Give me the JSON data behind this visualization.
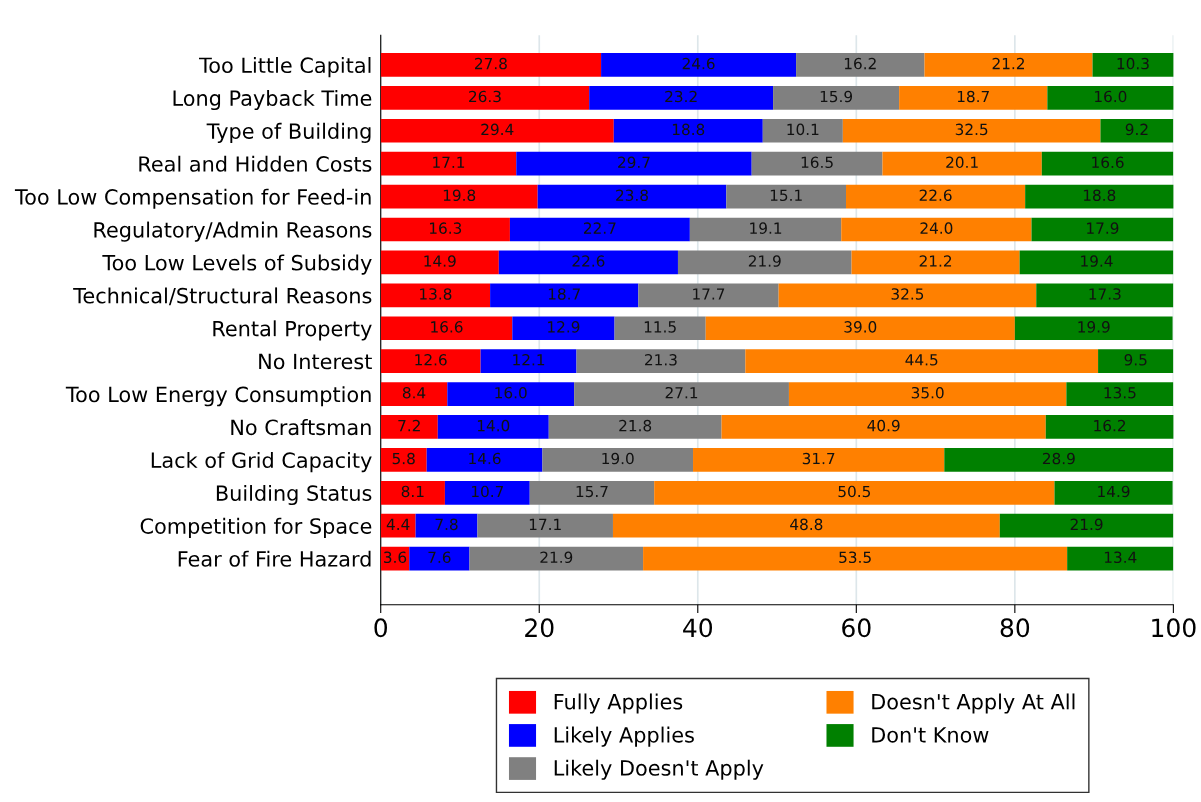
{
  "chart_data": {
    "type": "bar",
    "orientation": "horizontal",
    "stacked": true,
    "grid": "x",
    "legend": "bottom",
    "categories": [
      "Too Little Capital",
      "Long Payback Time",
      "Type of Building",
      "Real and Hidden Costs",
      "Too Low Compensation for Feed-in",
      "Regulatory/Admin Reasons",
      "Too Low Levels of Subsidy",
      "Technical/Structural Reasons",
      "Rental Property",
      "No Interest",
      "Too Low Energy Consumption",
      "No Craftsman",
      "Lack of Grid Capacity",
      "Building Status",
      "Competition for Space",
      "Fear of Fire Hazard"
    ],
    "xlim": [
      0,
      100
    ],
    "xticks": [
      0,
      20,
      40,
      60,
      80,
      100
    ],
    "series": [
      {
        "name": "Fully Applies",
        "color": "#ff0000",
        "values": [
          27.8,
          26.3,
          29.4,
          17.1,
          19.8,
          16.3,
          14.9,
          13.8,
          16.6,
          12.6,
          8.4,
          7.2,
          5.8,
          8.1,
          4.4,
          3.6
        ],
        "value_labels": [
          "27.8",
          "26.3",
          "29.4",
          "17.1",
          "19.8",
          "16.3",
          "14.9",
          "13.8",
          "16.6",
          "12.6",
          "8.4",
          "7.2",
          "5.8",
          "8.1",
          "4.4",
          "3.6"
        ]
      },
      {
        "name": "Likely Applies",
        "color": "#0000ff",
        "values": [
          24.6,
          23.2,
          18.8,
          29.7,
          23.8,
          22.7,
          22.6,
          18.7,
          12.9,
          12.1,
          16.0,
          14.0,
          14.6,
          10.7,
          7.8,
          7.6
        ],
        "value_labels": [
          "24.6",
          "23.2",
          "18.8",
          "29.7",
          "23.8",
          "22.7",
          "22.6",
          "18.7",
          "12.9",
          "12.1",
          "16.0",
          "14.0",
          "14.6",
          "10.7",
          "7.8",
          "7.6"
        ]
      },
      {
        "name": "Likely Doesn't Apply",
        "color": "#808080",
        "values": [
          16.2,
          15.9,
          10.1,
          16.5,
          15.1,
          19.1,
          21.9,
          17.7,
          11.5,
          21.3,
          27.1,
          21.8,
          19.0,
          15.7,
          17.1,
          21.9
        ],
        "value_labels": [
          "16.2",
          "15.9",
          "10.1",
          "16.5",
          "15.1",
          "19.1",
          "21.9",
          "17.7",
          "11.5",
          "21.3",
          "27.1",
          "21.8",
          "19.0",
          "15.7",
          "17.1",
          "21.9"
        ]
      },
      {
        "name": "Doesn't Apply At All",
        "color": "#ff8000",
        "values": [
          21.2,
          18.7,
          32.5,
          20.1,
          22.6,
          24.0,
          21.2,
          32.5,
          39.0,
          44.5,
          35.0,
          40.9,
          31.7,
          50.5,
          48.8,
          53.5
        ],
        "value_labels": [
          "21.2",
          "18.7",
          "32.5",
          "20.1",
          "22.6",
          "24.0",
          "21.2",
          "32.5",
          "39.0",
          "44.5",
          "35.0",
          "40.9",
          "31.7",
          "50.5",
          "48.8",
          "53.5"
        ]
      },
      {
        "name": "Don't Know",
        "color": "#008000",
        "values": [
          10.3,
          16.0,
          9.2,
          16.6,
          18.8,
          17.9,
          19.4,
          17.3,
          19.9,
          9.5,
          13.5,
          16.2,
          28.9,
          14.9,
          21.9,
          13.4
        ],
        "value_labels": [
          "10.3",
          "16.0",
          "9.2",
          "16.6",
          "18.8",
          "17.9",
          "19.4",
          "17.3",
          "19.9",
          "9.5",
          "13.5",
          "16.2",
          "28.9",
          "14.9",
          "21.9",
          "13.4"
        ]
      }
    ]
  }
}
